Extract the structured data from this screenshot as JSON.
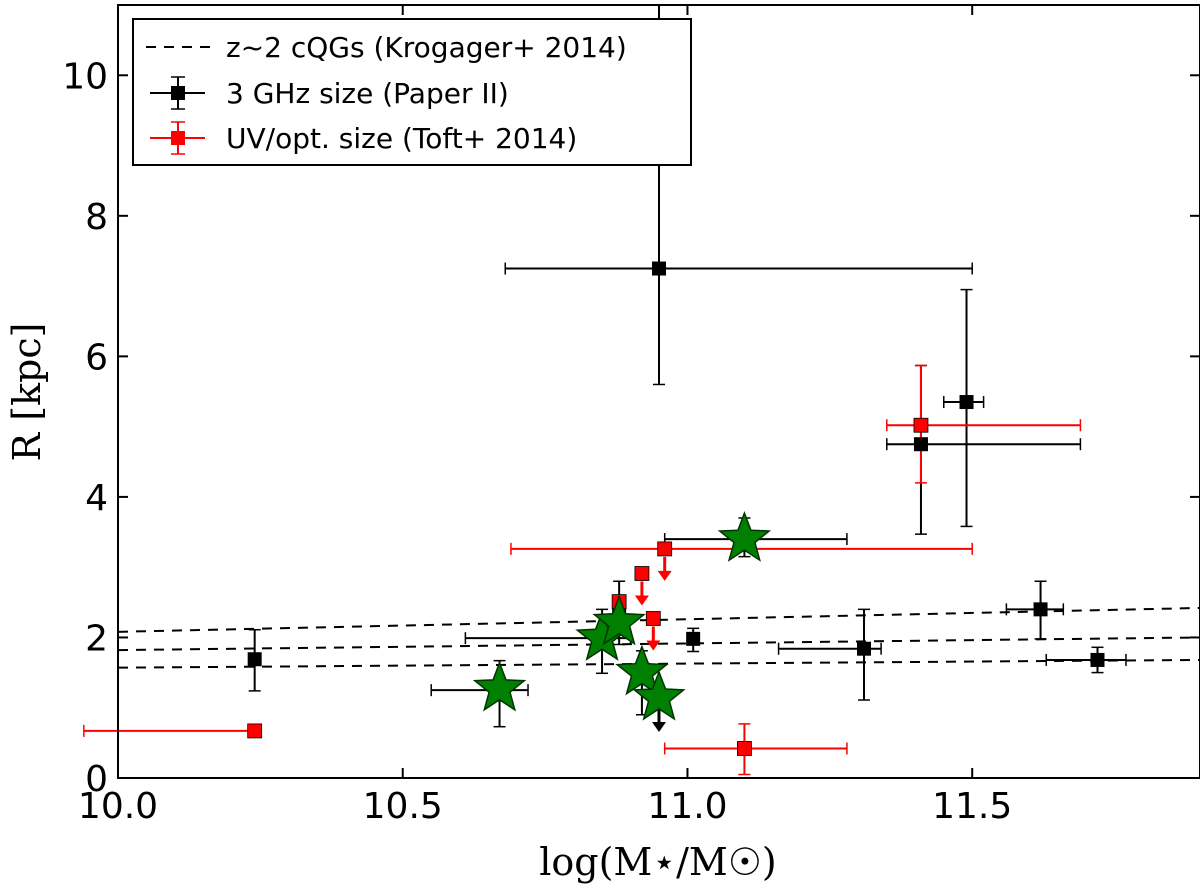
{
  "chart_data": {
    "type": "scatter",
    "xlabel": "log(M⋆/M☉)",
    "ylabel": "R [kpc]",
    "xlim": [
      10.0,
      11.9
    ],
    "ylim": [
      0,
      11
    ],
    "xticks": [
      "10.0",
      "10.5",
      "11.0",
      "11.5"
    ],
    "yticks": [
      "0",
      "2",
      "4",
      "6",
      "8",
      "10"
    ],
    "grid": false,
    "legend_position": "top-left",
    "legend": [
      {
        "label": "z~2 cQGs (Krogager+ 2014)",
        "style": "dashed-line",
        "color": "#000000"
      },
      {
        "label": "3 GHz size (Paper II)",
        "style": "square-errorbar",
        "color": "#000000"
      },
      {
        "label": "UV/opt. size (Toft+ 2014)",
        "style": "square-errorbar",
        "color": "#ff0000"
      }
    ],
    "relations": [
      {
        "x": [
          10.0,
          11.9
        ],
        "y": [
          2.08,
          2.42
        ]
      },
      {
        "x": [
          10.0,
          11.9
        ],
        "y": [
          1.82,
          2.0
        ]
      },
      {
        "x": [
          10.0,
          11.9
        ],
        "y": [
          1.57,
          1.68
        ]
      }
    ],
    "series": [
      {
        "name": "3 GHz size (Paper II)",
        "color": "#000000",
        "marker": "square",
        "points": [
          {
            "x": 10.24,
            "y": 1.69,
            "yerr_lo": 0.45,
            "yerr_hi": 0.42
          },
          {
            "x": 10.67,
            "y": 1.25,
            "xerr_lo": 0.12,
            "xerr_hi": 0.05,
            "yerr_lo": 0.52,
            "yerr_hi": 0.42
          },
          {
            "x": 10.85,
            "y": 1.99,
            "xerr_lo": 0.24,
            "xerr_hi": 0.05,
            "yerr_lo": 0.5,
            "yerr_hi": 0.41
          },
          {
            "x": 10.88,
            "y": 2.4,
            "yerr_lo": 0.5,
            "yerr_hi": 0.4
          },
          {
            "x": 10.92,
            "y": 1.5,
            "yerr_lo": 0.6,
            "yerr_hi": 0.31
          },
          {
            "x": 10.95,
            "y": 1.11,
            "upper_limit": true
          },
          {
            "x": 10.95,
            "y": 7.25,
            "xerr_lo": 0.27,
            "xerr_hi": 0.55,
            "yerr_lo": 1.65,
            "yerr_hi": 3.75
          },
          {
            "x": 11.01,
            "y": 1.98,
            "yerr_lo": 0.18,
            "yerr_hi": 0.15
          },
          {
            "x": 11.1,
            "y": 3.4,
            "xerr_lo": 0.14,
            "xerr_hi": 0.18,
            "yerr_lo": 0.25,
            "yerr_hi": 0.3
          },
          {
            "x": 11.31,
            "y": 1.84,
            "xerr_lo": 0.15,
            "xerr_hi": 0.03,
            "yerr_lo": 0.73,
            "yerr_hi": 0.56
          },
          {
            "x": 11.41,
            "y": 4.75,
            "xerr_lo": 0.06,
            "xerr_hi": 0.28,
            "yerr_lo": 1.28,
            "yerr_hi": 1.12
          },
          {
            "x": 11.49,
            "y": 5.35,
            "xerr_lo": 0.04,
            "xerr_hi": 0.03,
            "yerr_lo": 1.77,
            "yerr_hi": 1.6
          },
          {
            "x": 11.62,
            "y": 2.4,
            "xerr_lo": 0.06,
            "xerr_hi": 0.04,
            "yerr_lo": 0.42,
            "yerr_hi": 0.4
          },
          {
            "x": 11.72,
            "y": 1.68,
            "xerr_lo": 0.09,
            "xerr_hi": 0.05,
            "yerr_lo": 0.18,
            "yerr_hi": 0.18
          }
        ]
      },
      {
        "name": "UV/opt. size (Toft+ 2014)",
        "color": "#ff0000",
        "marker": "square",
        "points": [
          {
            "x": 10.24,
            "y": 0.67,
            "xerr_lo": 0.3,
            "xerr_hi": 0.0
          },
          {
            "x": 10.88,
            "y": 2.51,
            "upper_limit": true
          },
          {
            "x": 10.92,
            "y": 2.91,
            "xerr_lo": 0.01,
            "xerr_hi": 0.01,
            "upper_limit": true
          },
          {
            "x": 10.94,
            "y": 2.27,
            "xerr_lo": 0.01,
            "xerr_hi": 0.01,
            "upper_limit": true
          },
          {
            "x": 10.96,
            "y": 3.26,
            "xerr_lo": 0.27,
            "xerr_hi": 0.54,
            "upper_limit": true
          },
          {
            "x": 11.1,
            "y": 0.42,
            "xerr_lo": 0.14,
            "xerr_hi": 0.18,
            "yerr_lo": 0.37,
            "yerr_hi": 0.35
          },
          {
            "x": 11.41,
            "y": 5.02,
            "xerr_lo": 0.06,
            "xerr_hi": 0.28,
            "yerr_lo": 0.82,
            "yerr_hi": 0.85
          }
        ]
      },
      {
        "name": "",
        "color": "#008000",
        "marker": "star",
        "points": [
          {
            "x": 10.67,
            "y": 1.27
          },
          {
            "x": 10.85,
            "y": 1.99
          },
          {
            "x": 10.88,
            "y": 2.21
          },
          {
            "x": 10.92,
            "y": 1.5
          },
          {
            "x": 10.95,
            "y": 1.14
          },
          {
            "x": 11.1,
            "y": 3.4
          }
        ]
      }
    ]
  }
}
